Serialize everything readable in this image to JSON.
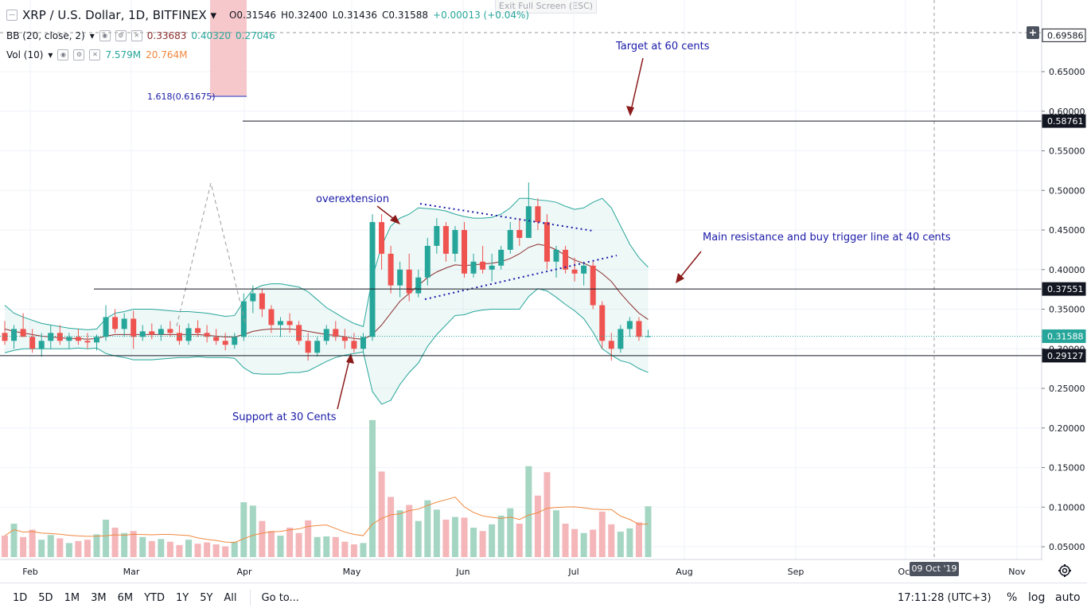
{
  "header": {
    "symbol": "XRP / U.S. Dollar",
    "interval": "1D",
    "exchange": "BITFINEX",
    "open": "O0.31546",
    "high": "H0.32400",
    "low": "L0.31436",
    "close": "C0.31588",
    "change": "+0.00013 (+0.04%)",
    "exit_fullscreen": "Exit Full Screen (ESC)"
  },
  "indicators": {
    "bb": {
      "label": "BB (20, close, 2)",
      "basis": "0.33683",
      "upper": "0.40320",
      "lower": "0.27046"
    },
    "vol": {
      "label": "Vol (10)",
      "volume": "7.579M",
      "ma": "20.764M"
    }
  },
  "bottom_bar": {
    "ranges": [
      "1D",
      "5D",
      "1M",
      "3M",
      "6M",
      "YTD",
      "1Y",
      "5Y",
      "All"
    ],
    "goto": "Go to...",
    "clock": "17:11:28 (UTC+3)",
    "percent": "%",
    "log": "log",
    "auto": "auto"
  },
  "crosshair_date": "09 Oct '19",
  "chart_data": {
    "type": "candlestick",
    "title": "XRP / U.S. Dollar 1D BITFINEX",
    "y_ticks": [
      "0.65000",
      "0.60000",
      "0.55000",
      "0.50000",
      "0.45000",
      "0.40000",
      "0.35000",
      "0.30000",
      "0.25000",
      "0.20000",
      "0.15000",
      "0.10000",
      "0.05000"
    ],
    "x_ticks": [
      "Feb",
      "Mar",
      "Apr",
      "May",
      "Jun",
      "Jul",
      "Aug",
      "Sep",
      "Oct",
      "Nov"
    ],
    "y_range": [
      0.0,
      0.7
    ],
    "price_labels": [
      {
        "value": 0.69586,
        "text": "0.69586",
        "color": "#131722",
        "bg": "#ffffff"
      },
      {
        "value": 0.58761,
        "text": "0.58761",
        "color": "#ffffff",
        "bg": "#131722"
      },
      {
        "value": 0.37551,
        "text": "0.37551",
        "color": "#ffffff",
        "bg": "#131722"
      },
      {
        "value": 0.31588,
        "text": "0.31588",
        "color": "#ffffff",
        "bg": "#26a69a"
      },
      {
        "value": 0.29127,
        "text": "0.29127",
        "color": "#ffffff",
        "bg": "#131722"
      }
    ],
    "horizontal_lines": [
      0.58761,
      0.37551,
      0.29127
    ],
    "annotations": [
      {
        "text": "Target at 60 cents"
      },
      {
        "text": "overextension"
      },
      {
        "text": "Main resistance and buy trigger line at 40 cents"
      },
      {
        "text": "Support at 30 Cents"
      },
      {
        "text": "1.618(0.61675)"
      }
    ],
    "colors": {
      "up": "#26a69a",
      "down": "#ef5350",
      "bb_basis": "#8b2d2d",
      "bb_band": "#26a69a",
      "vol_up": "#a5d6c4",
      "vol_down": "#f4b6b9",
      "vol_ma": "#f0883e",
      "annotation": "#1a1aa8"
    },
    "candles": [
      {
        "o": 0.32,
        "h": 0.335,
        "l": 0.305,
        "c": 0.31
      },
      {
        "o": 0.31,
        "h": 0.33,
        "l": 0.3,
        "c": 0.325
      },
      {
        "o": 0.325,
        "h": 0.345,
        "l": 0.315,
        "c": 0.315
      },
      {
        "o": 0.315,
        "h": 0.325,
        "l": 0.295,
        "c": 0.3
      },
      {
        "o": 0.3,
        "h": 0.32,
        "l": 0.29,
        "c": 0.31
      },
      {
        "o": 0.31,
        "h": 0.33,
        "l": 0.3,
        "c": 0.32
      },
      {
        "o": 0.32,
        "h": 0.33,
        "l": 0.305,
        "c": 0.31
      },
      {
        "o": 0.31,
        "h": 0.32,
        "l": 0.3,
        "c": 0.315
      },
      {
        "o": 0.315,
        "h": 0.325,
        "l": 0.305,
        "c": 0.31
      },
      {
        "o": 0.31,
        "h": 0.32,
        "l": 0.3,
        "c": 0.308
      },
      {
        "o": 0.308,
        "h": 0.318,
        "l": 0.298,
        "c": 0.315
      },
      {
        "o": 0.315,
        "h": 0.355,
        "l": 0.31,
        "c": 0.34
      },
      {
        "o": 0.34,
        "h": 0.35,
        "l": 0.32,
        "c": 0.325
      },
      {
        "o": 0.325,
        "h": 0.345,
        "l": 0.315,
        "c": 0.338
      },
      {
        "o": 0.338,
        "h": 0.348,
        "l": 0.3,
        "c": 0.315
      },
      {
        "o": 0.315,
        "h": 0.33,
        "l": 0.31,
        "c": 0.322
      },
      {
        "o": 0.322,
        "h": 0.332,
        "l": 0.312,
        "c": 0.318
      },
      {
        "o": 0.318,
        "h": 0.33,
        "l": 0.31,
        "c": 0.325
      },
      {
        "o": 0.325,
        "h": 0.335,
        "l": 0.315,
        "c": 0.32
      },
      {
        "o": 0.32,
        "h": 0.33,
        "l": 0.305,
        "c": 0.31
      },
      {
        "o": 0.31,
        "h": 0.332,
        "l": 0.305,
        "c": 0.326
      },
      {
        "o": 0.326,
        "h": 0.336,
        "l": 0.315,
        "c": 0.32
      },
      {
        "o": 0.32,
        "h": 0.33,
        "l": 0.308,
        "c": 0.315
      },
      {
        "o": 0.315,
        "h": 0.325,
        "l": 0.305,
        "c": 0.31
      },
      {
        "o": 0.31,
        "h": 0.32,
        "l": 0.298,
        "c": 0.305
      },
      {
        "o": 0.305,
        "h": 0.32,
        "l": 0.3,
        "c": 0.315
      },
      {
        "o": 0.315,
        "h": 0.37,
        "l": 0.31,
        "c": 0.36
      },
      {
        "o": 0.36,
        "h": 0.38,
        "l": 0.345,
        "c": 0.37
      },
      {
        "o": 0.37,
        "h": 0.375,
        "l": 0.34,
        "c": 0.35
      },
      {
        "o": 0.35,
        "h": 0.355,
        "l": 0.32,
        "c": 0.33
      },
      {
        "o": 0.33,
        "h": 0.34,
        "l": 0.315,
        "c": 0.335
      },
      {
        "o": 0.335,
        "h": 0.345,
        "l": 0.32,
        "c": 0.33
      },
      {
        "o": 0.33,
        "h": 0.335,
        "l": 0.305,
        "c": 0.31
      },
      {
        "o": 0.31,
        "h": 0.32,
        "l": 0.285,
        "c": 0.295
      },
      {
        "o": 0.295,
        "h": 0.315,
        "l": 0.29,
        "c": 0.31
      },
      {
        "o": 0.31,
        "h": 0.33,
        "l": 0.305,
        "c": 0.325
      },
      {
        "o": 0.325,
        "h": 0.335,
        "l": 0.31,
        "c": 0.315
      },
      {
        "o": 0.315,
        "h": 0.325,
        "l": 0.3,
        "c": 0.31
      },
      {
        "o": 0.31,
        "h": 0.32,
        "l": 0.295,
        "c": 0.3
      },
      {
        "o": 0.3,
        "h": 0.32,
        "l": 0.295,
        "c": 0.315
      },
      {
        "o": 0.315,
        "h": 0.47,
        "l": 0.31,
        "c": 0.46
      },
      {
        "o": 0.46,
        "h": 0.47,
        "l": 0.4,
        "c": 0.42
      },
      {
        "o": 0.42,
        "h": 0.43,
        "l": 0.37,
        "c": 0.38
      },
      {
        "o": 0.38,
        "h": 0.41,
        "l": 0.365,
        "c": 0.4
      },
      {
        "o": 0.4,
        "h": 0.42,
        "l": 0.36,
        "c": 0.37
      },
      {
        "o": 0.37,
        "h": 0.4,
        "l": 0.365,
        "c": 0.39
      },
      {
        "o": 0.39,
        "h": 0.44,
        "l": 0.38,
        "c": 0.43
      },
      {
        "o": 0.43,
        "h": 0.465,
        "l": 0.42,
        "c": 0.455
      },
      {
        "o": 0.455,
        "h": 0.46,
        "l": 0.41,
        "c": 0.42
      },
      {
        "o": 0.42,
        "h": 0.455,
        "l": 0.41,
        "c": 0.45
      },
      {
        "o": 0.45,
        "h": 0.46,
        "l": 0.39,
        "c": 0.395
      },
      {
        "o": 0.395,
        "h": 0.42,
        "l": 0.39,
        "c": 0.41
      },
      {
        "o": 0.41,
        "h": 0.43,
        "l": 0.395,
        "c": 0.4
      },
      {
        "o": 0.4,
        "h": 0.42,
        "l": 0.385,
        "c": 0.405
      },
      {
        "o": 0.405,
        "h": 0.43,
        "l": 0.4,
        "c": 0.425
      },
      {
        "o": 0.425,
        "h": 0.46,
        "l": 0.42,
        "c": 0.45
      },
      {
        "o": 0.45,
        "h": 0.465,
        "l": 0.43,
        "c": 0.44
      },
      {
        "o": 0.44,
        "h": 0.51,
        "l": 0.44,
        "c": 0.48
      },
      {
        "o": 0.48,
        "h": 0.49,
        "l": 0.45,
        "c": 0.46
      },
      {
        "o": 0.46,
        "h": 0.47,
        "l": 0.4,
        "c": 0.41
      },
      {
        "o": 0.41,
        "h": 0.43,
        "l": 0.39,
        "c": 0.425
      },
      {
        "o": 0.425,
        "h": 0.43,
        "l": 0.395,
        "c": 0.4
      },
      {
        "o": 0.4,
        "h": 0.415,
        "l": 0.385,
        "c": 0.395
      },
      {
        "o": 0.395,
        "h": 0.41,
        "l": 0.38,
        "c": 0.405
      },
      {
        "o": 0.405,
        "h": 0.41,
        "l": 0.35,
        "c": 0.355
      },
      {
        "o": 0.355,
        "h": 0.36,
        "l": 0.3,
        "c": 0.31
      },
      {
        "o": 0.31,
        "h": 0.32,
        "l": 0.285,
        "c": 0.3
      },
      {
        "o": 0.3,
        "h": 0.33,
        "l": 0.295,
        "c": 0.325
      },
      {
        "o": 0.325,
        "h": 0.34,
        "l": 0.315,
        "c": 0.335
      },
      {
        "o": 0.335,
        "h": 0.34,
        "l": 0.31,
        "c": 0.315
      },
      {
        "o": 0.315,
        "h": 0.324,
        "l": 0.3144,
        "c": 0.3159
      }
    ],
    "volumes": [
      3.2,
      5.0,
      3.0,
      4.1,
      2.6,
      3.3,
      2.8,
      2.1,
      2.4,
      2.6,
      3.4,
      5.6,
      4.4,
      3.6,
      3.9,
      3.0,
      2.4,
      2.7,
      2.3,
      1.8,
      2.6,
      2.0,
      2.2,
      1.9,
      1.6,
      2.3,
      8.2,
      7.7,
      5.4,
      3.9,
      3.2,
      4.4,
      3.6,
      5.5,
      3.0,
      3.1,
      3.0,
      2.3,
      1.9,
      2.1,
      20.5,
      12.8,
      9.0,
      7.0,
      7.8,
      5.4,
      8.5,
      7.1,
      5.6,
      6.0,
      5.9,
      4.4,
      3.9,
      4.9,
      6.2,
      7.3,
      5.0,
      13.6,
      9.2,
      12.7,
      7.0,
      5.0,
      4.2,
      3.6,
      4.1,
      6.8,
      4.9,
      3.8,
      4.3,
      5.2,
      7.6
    ],
    "bb_basis": [
      0.325,
      0.322,
      0.32,
      0.318,
      0.316,
      0.315,
      0.314,
      0.313,
      0.313,
      0.312,
      0.313,
      0.316,
      0.318,
      0.318,
      0.318,
      0.318,
      0.318,
      0.318,
      0.318,
      0.318,
      0.318,
      0.318,
      0.317,
      0.316,
      0.315,
      0.315,
      0.318,
      0.322,
      0.324,
      0.325,
      0.325,
      0.325,
      0.324,
      0.322,
      0.32,
      0.318,
      0.317,
      0.315,
      0.313,
      0.312,
      0.318,
      0.33,
      0.345,
      0.36,
      0.37,
      0.38,
      0.39,
      0.397,
      0.402,
      0.406,
      0.405,
      0.406,
      0.407,
      0.408,
      0.41,
      0.414,
      0.42,
      0.428,
      0.432,
      0.43,
      0.425,
      0.418,
      0.412,
      0.408,
      0.403,
      0.395,
      0.385,
      0.37,
      0.357,
      0.345,
      0.337
    ],
    "bb_upper": [
      0.355,
      0.345,
      0.34,
      0.336,
      0.332,
      0.33,
      0.328,
      0.326,
      0.325,
      0.324,
      0.325,
      0.338,
      0.345,
      0.347,
      0.35,
      0.35,
      0.35,
      0.349,
      0.348,
      0.347,
      0.347,
      0.346,
      0.345,
      0.343,
      0.341,
      0.342,
      0.36,
      0.375,
      0.38,
      0.382,
      0.382,
      0.38,
      0.378,
      0.372,
      0.362,
      0.352,
      0.345,
      0.338,
      0.332,
      0.328,
      0.39,
      0.43,
      0.455,
      0.465,
      0.47,
      0.478,
      0.477,
      0.476,
      0.474,
      0.47,
      0.467,
      0.465,
      0.465,
      0.466,
      0.47,
      0.478,
      0.49,
      0.49,
      0.488,
      0.487,
      0.485,
      0.48,
      0.476,
      0.478,
      0.485,
      0.49,
      0.478,
      0.455,
      0.432,
      0.415,
      0.403
    ],
    "bb_lower": [
      0.295,
      0.298,
      0.3,
      0.3,
      0.3,
      0.3,
      0.3,
      0.3,
      0.301,
      0.3,
      0.301,
      0.294,
      0.291,
      0.289,
      0.286,
      0.286,
      0.286,
      0.287,
      0.288,
      0.289,
      0.289,
      0.29,
      0.289,
      0.289,
      0.289,
      0.288,
      0.276,
      0.269,
      0.268,
      0.268,
      0.268,
      0.27,
      0.27,
      0.272,
      0.278,
      0.284,
      0.289,
      0.292,
      0.294,
      0.296,
      0.246,
      0.23,
      0.235,
      0.255,
      0.27,
      0.282,
      0.303,
      0.318,
      0.33,
      0.342,
      0.343,
      0.347,
      0.349,
      0.35,
      0.35,
      0.35,
      0.35,
      0.366,
      0.376,
      0.373,
      0.365,
      0.356,
      0.348,
      0.338,
      0.321,
      0.3,
      0.292,
      0.285,
      0.282,
      0.275,
      0.27
    ]
  }
}
